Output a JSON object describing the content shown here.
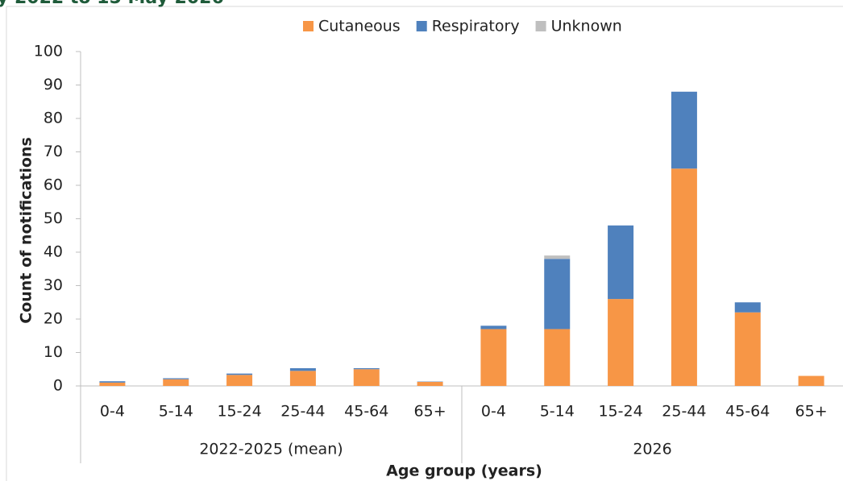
{
  "chart_data": {
    "type": "stacked_bar",
    "title": "y 2022 to 15 May 2026",
    "x_label": "Age group (years)",
    "y_label": "Count of notifications",
    "categories": [
      "0-4",
      "5-14",
      "15-24",
      "25-44",
      "45-64",
      "65+",
      "0-4",
      "5-14",
      "15-24",
      "25-44",
      "45-64",
      "65+"
    ],
    "groups": [
      "2022-2025 (mean)",
      "2026"
    ],
    "series": [
      {
        "name": "Cutaneous",
        "color": "#f79646",
        "values": [
          1.0,
          2.0,
          3.3,
          4.5,
          5.0,
          1.2,
          17,
          17,
          26,
          65,
          22,
          3
        ]
      },
      {
        "name": "Respiratory",
        "color": "#4f81bd",
        "values": [
          0.4,
          0.3,
          0.4,
          0.8,
          0.3,
          0.1,
          1,
          21,
          22,
          23,
          3,
          0
        ]
      },
      {
        "name": "Unknown",
        "color": "#bfbfbf",
        "values": [
          0,
          0,
          0,
          0,
          0,
          0,
          0,
          1,
          0,
          0,
          0,
          0
        ]
      }
    ],
    "ylim": [
      0,
      100
    ],
    "yticks": [
      0,
      10,
      20,
      30,
      40,
      50,
      60,
      70,
      80,
      90,
      100
    ],
    "legend": "top"
  }
}
